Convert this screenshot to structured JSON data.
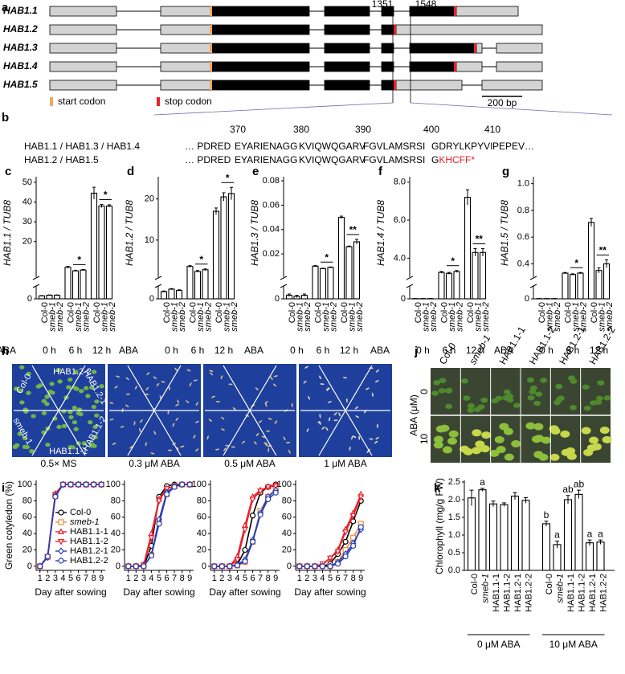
{
  "gene_structure": {
    "letter": "a",
    "isoforms": [
      "HAB1.1",
      "HAB1.2",
      "HAB1.3",
      "HAB1.4",
      "HAB1.5"
    ],
    "positions": [
      "1351",
      "1548"
    ],
    "legend": [
      "start codon",
      "stop codon"
    ],
    "scale_bar": "200 bp"
  },
  "alignment": {
    "letter": "b",
    "positions": [
      "370",
      "380",
      "390",
      "400",
      "410"
    ],
    "rows": [
      {
        "label": "HAB1.1 / HAB1.3 / HAB1.4",
        "sequence": [
          "… PDRED",
          "EYARIENAGG",
          "KVIQWQGARV",
          "FGVLAMSRSI",
          "GDRYLKPYVI",
          "PEPEV…"
        ]
      },
      {
        "label": "HAB1.2 / HAB1.5",
        "sequence": [
          "… PDRED",
          "EYARIENAGG",
          "KVIQWQGARV",
          "FGVLAMSRSI",
          "G"
        ],
        "stop": "KHCFF*"
      }
    ]
  },
  "germination_photos": {
    "letter": "h",
    "genotypes": [
      "Col-0",
      "HAB1.2-2",
      "HAB1.2-1",
      "HAB1.1-2",
      "HAB1.1-1",
      "smeb-1"
    ],
    "conditions": [
      "0.5× MS",
      "0.3 μM ABA",
      "0.5 μM ABA",
      "1 μM ABA"
    ]
  },
  "plant_photos": {
    "letter": "j",
    "genotypes": [
      "Col-0",
      "smeb-1",
      "HAB1.1-1",
      "HAB1.1-2",
      "HAB1.2-1",
      "HAB1.2-2"
    ],
    "axis_label": "ABA (μM)",
    "doses": [
      "0",
      "10"
    ]
  },
  "chart_data": [
    {
      "type": "bar",
      "letter": "c",
      "ylabel": "HAB1.1 / TUB8",
      "categories": [
        "Col-0",
        "smeb-1",
        "smeb-2",
        "Col-0",
        "smeb-1",
        "smeb-2",
        "Col-0",
        "smeb-1",
        "smeb-2"
      ],
      "groups": [
        "0 h",
        "6 h",
        "12 h"
      ],
      "group_title": "ABA",
      "values": [
        0.5,
        0.6,
        0.6,
        7,
        5.2,
        5.6,
        44.5,
        38,
        38
      ],
      "errors": [
        0.05,
        0.05,
        0.05,
        0.5,
        0.3,
        0.3,
        3,
        0.8,
        0.6
      ],
      "ylim_lower": [
        0,
        2
      ],
      "yticks_lower": [
        0
      ],
      "ylim": [
        2,
        52
      ],
      "yticks": [
        20,
        30,
        40,
        50
      ],
      "significance": [
        null,
        "*",
        "*"
      ]
    },
    {
      "type": "bar",
      "letter": "d",
      "ylabel": "HAB1.2 / TUB8",
      "categories": [
        "Col-0",
        "smeb-1",
        "smeb-2",
        "Col-0",
        "smeb-1",
        "smeb-2",
        "Col-0",
        "smeb-1",
        "smeb-2"
      ],
      "groups": [
        "0 h",
        "6 h",
        "12 h"
      ],
      "group_title": "ABA",
      "values": [
        0.6,
        0.8,
        0.7,
        3.6,
        2.4,
        2.8,
        17,
        20.5,
        21.3
      ],
      "errors": [
        0.05,
        0.05,
        0.05,
        0.2,
        0.2,
        0.2,
        0.8,
        1,
        1.5
      ],
      "ylim_lower": [
        0,
        1
      ],
      "yticks_lower": [
        0
      ],
      "ylim": [
        1,
        25
      ],
      "yticks": [
        10,
        20
      ],
      "significance": [
        null,
        "*",
        "*"
      ]
    },
    {
      "type": "bar",
      "letter": "e",
      "ylabel": "HAB1.3 / TUB8",
      "categories": [
        "Col-0",
        "smeb-1",
        "smeb-2",
        "Col-0",
        "smeb-1",
        "smeb-2",
        "Col-0",
        "smeb-1",
        "smeb-2"
      ],
      "groups": [
        "0 h",
        "6 h",
        "12 h"
      ],
      "group_title": "ABA",
      "values": [
        0.0003,
        0.0002,
        0.0003,
        0.01,
        0.008,
        0.009,
        0.05,
        0.026,
        0.03
      ],
      "errors": [
        0.0001,
        0.0001,
        0.0001,
        0.0005,
        0.0003,
        0.0004,
        0.001,
        0.0005,
        0.002
      ],
      "ylim_lower": [
        0,
        0.001
      ],
      "yticks_lower": [
        0
      ],
      "ylim": [
        0.001,
        0.082
      ],
      "yticks": [
        0.02,
        0.04,
        0.06,
        0.08
      ],
      "significance": [
        null,
        "*",
        "**"
      ]
    },
    {
      "type": "bar",
      "letter": "f",
      "ylabel": "HAB1.4 / TUB8",
      "categories": [
        "Col-0",
        "smeb-1",
        "smeb-2",
        "Col-0",
        "smeb-1",
        "smeb-2",
        "Col-0",
        "smeb-1",
        "smeb-2"
      ],
      "groups": [
        "0 h",
        "6 h",
        "12 h"
      ],
      "group_title": "ABA",
      "values": [
        0.05,
        0.05,
        0.05,
        3.25,
        3.2,
        3.3,
        7.2,
        4.3,
        4.3
      ],
      "errors": [
        0.01,
        0.01,
        0.01,
        0.05,
        0.05,
        0.05,
        0.4,
        0.2,
        0.2
      ],
      "ylim_lower": [
        0,
        3
      ],
      "yticks_lower": [
        0
      ],
      "ylim": [
        3,
        8.2
      ],
      "yticks": [
        {
          "value": 4,
          "label": "4.0"
        },
        {
          "value": 6,
          "label": "6.0"
        },
        {
          "value": 8,
          "label": "8.0"
        }
      ],
      "significance": [
        null,
        "*",
        "**"
      ]
    },
    {
      "type": "bar",
      "letter": "g",
      "ylabel": "HAB1.5 / TUB8",
      "categories": [
        "Col-0",
        "smeb-1",
        "smeb-2",
        "Col-0",
        "smeb-1",
        "smeb-2",
        "Col-0",
        "smeb-1",
        "smeb-2"
      ],
      "groups": [
        "0 h",
        "6 h",
        "12 h"
      ],
      "group_title": "ABA",
      "values": [
        0.005,
        0.005,
        0.005,
        0.33,
        0.32,
        0.33,
        0.71,
        0.35,
        0.4
      ],
      "errors": [
        0.001,
        0.001,
        0.001,
        0.005,
        0.005,
        0.005,
        0.03,
        0.02,
        0.03
      ],
      "ylim_lower": [
        0,
        0.3
      ],
      "yticks_lower": [
        0
      ],
      "ylim": [
        0.3,
        1.04
      ],
      "yticks": [
        0.4,
        0.6,
        0.8,
        {
          "value": 1,
          "label": "1.0"
        }
      ],
      "significance": [
        null,
        "*",
        "**"
      ]
    },
    {
      "type": "line",
      "letter": "i",
      "ylabel": "Green cotyledon (%)",
      "xlabel": "Day after sowing",
      "legend": "lower right",
      "x": [
        1,
        2,
        3,
        4,
        5,
        6,
        7,
        8,
        9
      ],
      "xlim": [
        0.5,
        9.5
      ],
      "ylim": [
        -5,
        105
      ],
      "xticks": [
        1,
        2,
        3,
        4,
        5,
        6,
        7,
        8,
        9
      ],
      "yticks": [
        0,
        20,
        40,
        60,
        80,
        100
      ],
      "series": [
        {
          "name": "Col-0",
          "color": "#000000",
          "marker": "circle",
          "values": [
            0,
            12,
            87,
            100,
            100,
            100,
            100,
            100,
            100
          ]
        },
        {
          "name": "smeb-1",
          "color": "#f08a3c",
          "marker": "square",
          "values": [
            0,
            11,
            86,
            100,
            100,
            100,
            100,
            100,
            100
          ]
        },
        {
          "name": "HAB1.1-1",
          "color": "#e8202a",
          "marker": "triangle-up",
          "values": [
            0,
            13,
            89,
            100,
            100,
            100,
            100,
            100,
            100
          ]
        },
        {
          "name": "HAB1.1-2",
          "color": "#e8202a",
          "marker": "triangle-down",
          "values": [
            0,
            12,
            88,
            100,
            100,
            100,
            100,
            100,
            100
          ]
        },
        {
          "name": "HAB1.2-1",
          "color": "#2a3fb5",
          "marker": "diamond",
          "values": [
            0,
            11,
            86,
            100,
            100,
            100,
            100,
            100,
            100
          ]
        },
        {
          "name": "HAB1.2-2",
          "color": "#2a3fb5",
          "marker": "circle",
          "values": [
            0,
            12,
            85,
            100,
            100,
            100,
            100,
            100,
            100
          ]
        }
      ]
    },
    {
      "type": "line",
      "xlabel": "Day after sowing",
      "x": [
        1,
        2,
        3,
        4,
        5,
        6,
        7,
        8,
        9
      ],
      "xlim": [
        0.5,
        9.5
      ],
      "ylim": [
        -5,
        105
      ],
      "xticks": [
        1,
        2,
        3,
        4,
        5,
        6,
        7,
        8,
        9
      ],
      "yticks": [
        0,
        20,
        40,
        60,
        80,
        100
      ],
      "series": [
        {
          "color": "#000000",
          "marker": "circle",
          "values": [
            0,
            0,
            0,
            25,
            85,
            98,
            100,
            100,
            100
          ]
        },
        {
          "color": "#f08a3c",
          "marker": "square",
          "values": [
            0,
            0,
            0,
            14,
            55,
            88,
            98,
            100,
            100
          ]
        },
        {
          "color": "#e8202a",
          "marker": "triangle-up",
          "values": [
            0,
            0,
            2,
            40,
            82,
            95,
            98,
            100,
            100
          ]
        },
        {
          "color": "#e8202a",
          "marker": "triangle-down",
          "values": [
            0,
            0,
            2,
            35,
            80,
            95,
            98,
            100,
            100
          ]
        },
        {
          "color": "#2a3fb5",
          "marker": "diamond",
          "values": [
            0,
            0,
            0,
            14,
            57,
            90,
            98,
            100,
            100
          ]
        },
        {
          "color": "#2a3fb5",
          "marker": "circle",
          "values": [
            0,
            0,
            0,
            13,
            52,
            88,
            97,
            100,
            100
          ]
        }
      ]
    },
    {
      "type": "line",
      "xlabel": "Day after sowing",
      "x": [
        1,
        2,
        3,
        4,
        5,
        6,
        7,
        8,
        9
      ],
      "xlim": [
        0.5,
        9.5
      ],
      "ylim": [
        -5,
        105
      ],
      "xticks": [
        1,
        2,
        3,
        4,
        5,
        6,
        7,
        8,
        9
      ],
      "yticks": [
        0,
        20,
        40,
        60,
        80,
        100
      ],
      "series": [
        {
          "color": "#000000",
          "marker": "circle",
          "values": [
            0,
            0,
            0,
            2,
            20,
            62,
            90,
            97,
            100
          ]
        },
        {
          "color": "#f08a3c",
          "marker": "square",
          "values": [
            0,
            0,
            0,
            1,
            5,
            30,
            68,
            85,
            95
          ]
        },
        {
          "color": "#e8202a",
          "marker": "triangle-up",
          "values": [
            0,
            0,
            0,
            12,
            50,
            85,
            93,
            97,
            100
          ]
        },
        {
          "color": "#e8202a",
          "marker": "triangle-down",
          "values": [
            0,
            0,
            0,
            8,
            45,
            82,
            92,
            97,
            98
          ]
        },
        {
          "color": "#2a3fb5",
          "marker": "diamond",
          "values": [
            0,
            0,
            0,
            2,
            8,
            32,
            65,
            85,
            93
          ]
        },
        {
          "color": "#2a3fb5",
          "marker": "circle",
          "values": [
            0,
            0,
            0,
            1,
            6,
            30,
            63,
            82,
            90
          ]
        }
      ]
    },
    {
      "type": "line",
      "xlabel": "Day after sowing",
      "x": [
        1,
        2,
        3,
        4,
        5,
        6,
        7,
        8,
        9
      ],
      "xlim": [
        0.5,
        9.5
      ],
      "ylim": [
        -5,
        105
      ],
      "xticks": [
        1,
        2,
        3,
        4,
        5,
        6,
        7,
        8,
        9
      ],
      "yticks": [
        0,
        20,
        40,
        60,
        80,
        100
      ],
      "series": [
        {
          "color": "#000000",
          "marker": "circle",
          "values": [
            0,
            0,
            0,
            0,
            3,
            15,
            30,
            55,
            80
          ]
        },
        {
          "color": "#f08a3c",
          "marker": "square",
          "values": [
            0,
            0,
            0,
            0,
            0,
            5,
            20,
            35,
            52
          ]
        },
        {
          "color": "#e8202a",
          "marker": "triangle-up",
          "values": [
            0,
            0,
            0,
            2,
            10,
            20,
            45,
            65,
            88
          ]
        },
        {
          "color": "#e8202a",
          "marker": "triangle-down",
          "values": [
            0,
            0,
            0,
            3,
            10,
            18,
            42,
            62,
            85
          ]
        },
        {
          "color": "#2a3fb5",
          "marker": "diamond",
          "values": [
            0,
            0,
            0,
            0,
            0,
            5,
            15,
            28,
            45
          ]
        },
        {
          "color": "#2a3fb5",
          "marker": "circle",
          "values": [
            0,
            0,
            0,
            0,
            0,
            3,
            12,
            25,
            48
          ]
        }
      ]
    },
    {
      "type": "bar",
      "letter": "k",
      "ylabel": "Chlorophyll (mg/g FW)",
      "categories": [
        "Col-0",
        "smeb-1",
        "HAB1.1-1",
        "HAB1.1-2",
        "HAB1.2-1",
        "HAB1.2-2",
        "Col-0",
        "smeb-1",
        "HAB1.1-1",
        "HAB1.1-2",
        "HAB1.2-1",
        "HAB1.2-2"
      ],
      "groups": [
        "0 μM ABA",
        "10 μM ABA"
      ],
      "values": [
        2.05,
        2.28,
        1.88,
        1.86,
        2.1,
        1.98,
        1.32,
        0.73,
        2.0,
        2.15,
        0.78,
        0.8
      ],
      "errors": [
        0.22,
        0.04,
        0.08,
        0.05,
        0.1,
        0.08,
        0.07,
        0.1,
        0.12,
        0.12,
        0.08,
        0.06
      ],
      "letters": [
        null,
        "a",
        null,
        null,
        null,
        null,
        "b",
        "a",
        "ab",
        "ab",
        "a",
        "a"
      ],
      "ylim": [
        0,
        2.5
      ],
      "yticks": [
        {
          "value": 0,
          "label": "0.0"
        },
        0.5,
        {
          "value": 1,
          "label": "1.0"
        },
        1.5,
        {
          "value": 2,
          "label": "2.0"
        },
        2.5
      ]
    }
  ]
}
